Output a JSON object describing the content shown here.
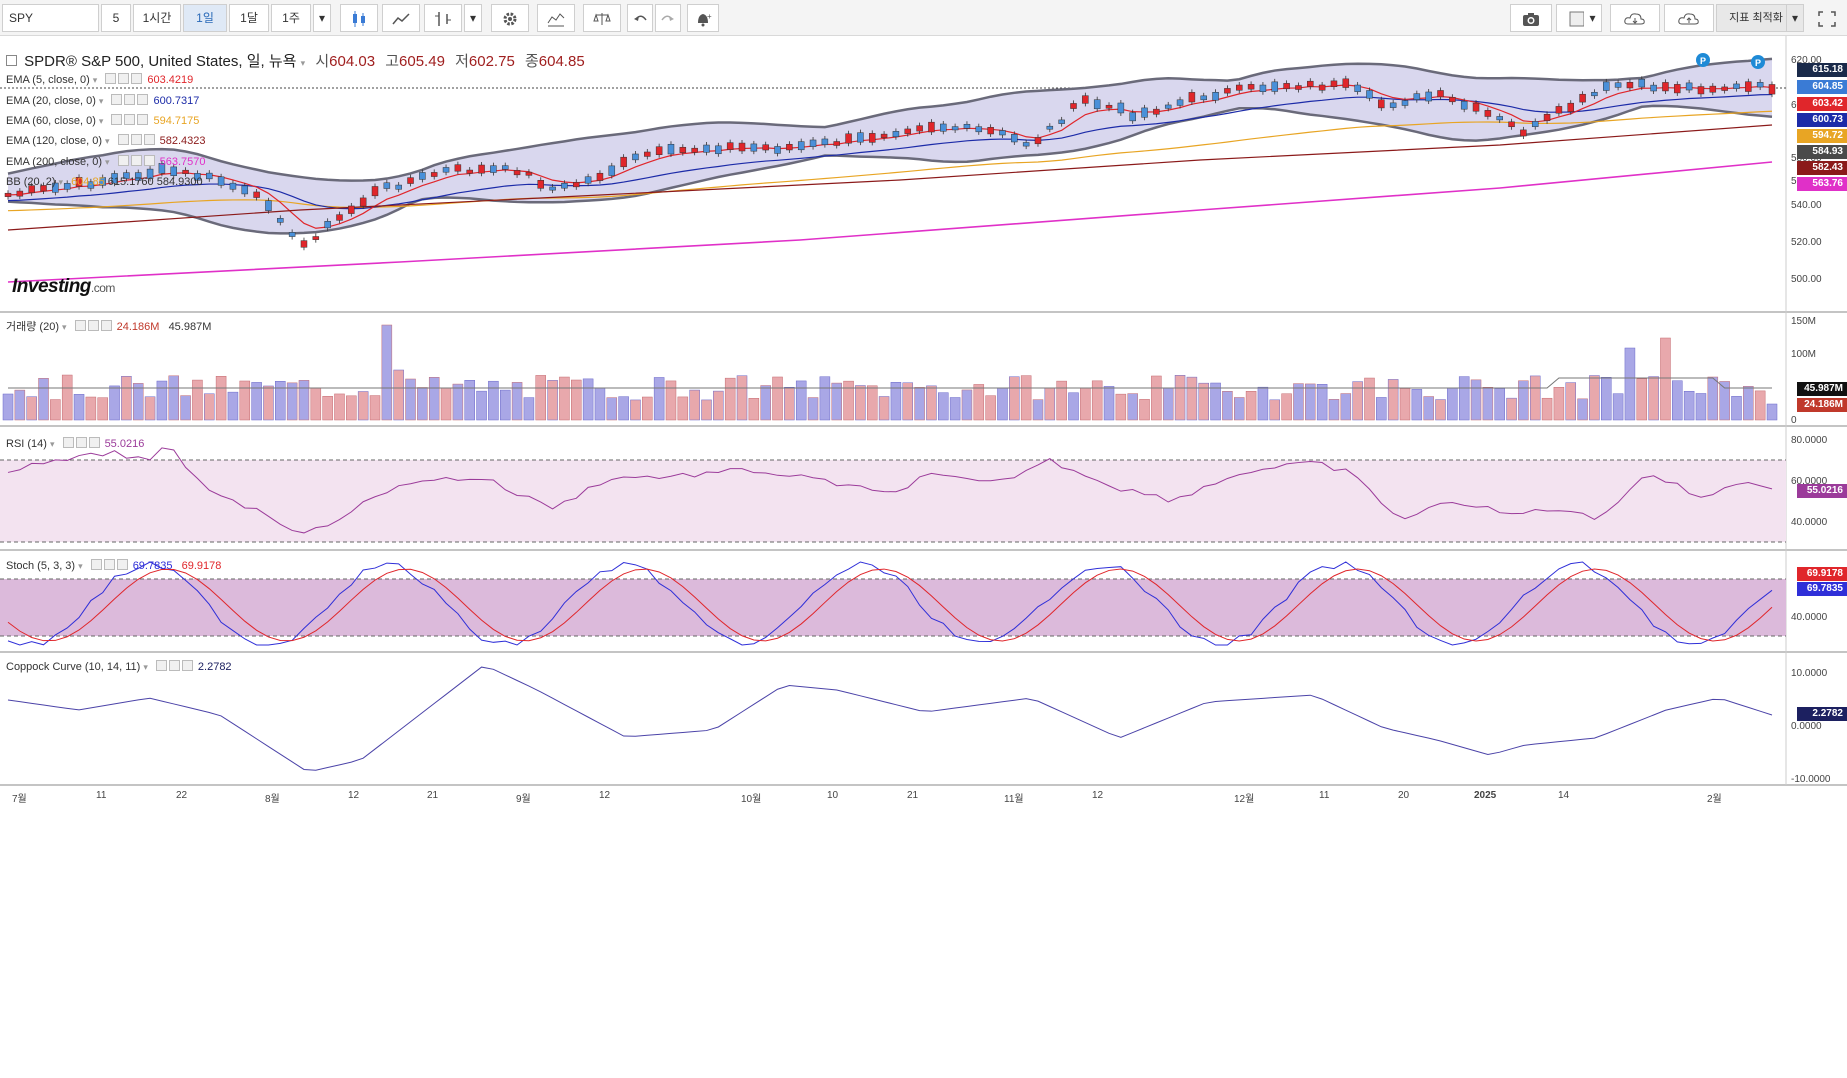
{
  "toolbar": {
    "symbol": "SPY",
    "intervals": [
      "5",
      "1시간",
      "1일",
      "1달",
      "1주"
    ],
    "active_interval": "1일",
    "optimize_label": "지표 최적화"
  },
  "header": {
    "title": "SPDR® S&P 500, United States, 일, 뉴욕",
    "open_label": "시",
    "open": "604.03",
    "high_label": "고",
    "high": "605.49",
    "low_label": "저",
    "low": "602.75",
    "close_label": "종",
    "close": "604.85"
  },
  "legends": {
    "ema5": {
      "label": "EMA (5, close, 0)",
      "value": "603.4219",
      "color": "#e0262b"
    },
    "ema20": {
      "label": "EMA (20, close, 0)",
      "value": "600.7317",
      "color": "#1c2ba8"
    },
    "ema60": {
      "label": "EMA (60, close, 0)",
      "value": "594.7175",
      "color": "#e8a524"
    },
    "ema120": {
      "label": "EMA (120, close, 0)",
      "value": "582.4323",
      "color": "#8b1a1a"
    },
    "ema200": {
      "label": "EMA (200, close, 0)",
      "value": "563.7570",
      "color": "#e030c8"
    },
    "bb": {
      "label": "BB (20, 2)",
      "value1": "604.85",
      "value2": "615.1760",
      "value3": "584.9300"
    },
    "volume": {
      "label": "거래량 (20)",
      "value1": "24.186M",
      "value2": "45.987M"
    },
    "rsi": {
      "label": "RSI (14)",
      "value": "55.0216"
    },
    "stoch": {
      "label": "Stoch (5, 3, 3)",
      "value1": "69.7835",
      "value2": "69.9178"
    },
    "coppock": {
      "label": "Coppock Curve (10, 14, 11)",
      "value": "2.2782"
    }
  },
  "price_axis": {
    "ticks": [
      "620.00",
      "600.00",
      "580.00",
      "560.00",
      "540.00",
      "520.00",
      "500.00"
    ],
    "tags": [
      {
        "text": "615.18",
        "bg": "#1a2a4a"
      },
      {
        "text": "604.85",
        "bg": "#3a7bd5"
      },
      {
        "text": "603.42",
        "bg": "#e0262b"
      },
      {
        "text": "600.73",
        "bg": "#1c2ba8"
      },
      {
        "text": "594.72",
        "bg": "#e8a524"
      },
      {
        "text": "584.93",
        "bg": "#4a4a4a"
      },
      {
        "text": "582.43",
        "bg": "#8b1a1a"
      },
      {
        "text": "563.76",
        "bg": "#e030c8"
      }
    ]
  },
  "volume_axis": {
    "ticks": [
      "150M",
      "100M",
      "0"
    ],
    "tag1": "45.987M",
    "tag2": "24.186M"
  },
  "rsi_axis": {
    "ticks": [
      "80.0000",
      "60.0000",
      "40.0000"
    ],
    "tag": "55.0216"
  },
  "stoch_axis": {
    "ticks": [
      "40.0000"
    ],
    "tag1": "69.9178",
    "tag2": "69.7835"
  },
  "coppock_axis": {
    "ticks": [
      "10.0000",
      "0.0000",
      "-10.0000"
    ],
    "tag": "2.2782"
  },
  "time_axis": [
    "7월",
    "11",
    "22",
    "8월",
    "12",
    "21",
    "9월",
    "12",
    "10월",
    "10",
    "21",
    "11월",
    "12",
    "12월",
    "11",
    "20",
    "2025",
    "14",
    "2월"
  ],
  "logo": {
    "text": "Investing",
    "suffix": ".com"
  },
  "colors": {
    "up": "#4a90d9",
    "down": "#e0262b",
    "band_fill": "#d9d7ee",
    "band_line": "#6a6a7a"
  }
}
